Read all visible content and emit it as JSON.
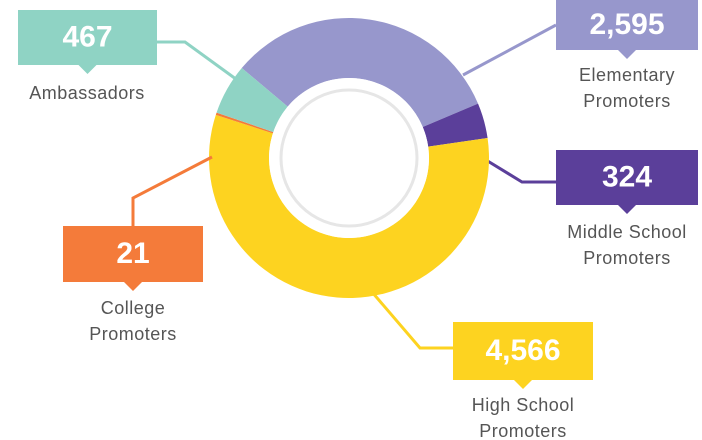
{
  "chart_data": {
    "type": "donut",
    "categories": [
      "Elementary Promoters",
      "Middle School Promoters",
      "High School Promoters",
      "College Promoters",
      "Ambassadors"
    ],
    "values": [
      2595,
      324,
      4566,
      21,
      467
    ],
    "value_labels": [
      "2,595",
      "324",
      "4,566",
      "21",
      "467"
    ],
    "colors": [
      "#9797cc",
      "#5b3f9a",
      "#fdd320",
      "#f47b3a",
      "#8fd3c4"
    ]
  }
}
